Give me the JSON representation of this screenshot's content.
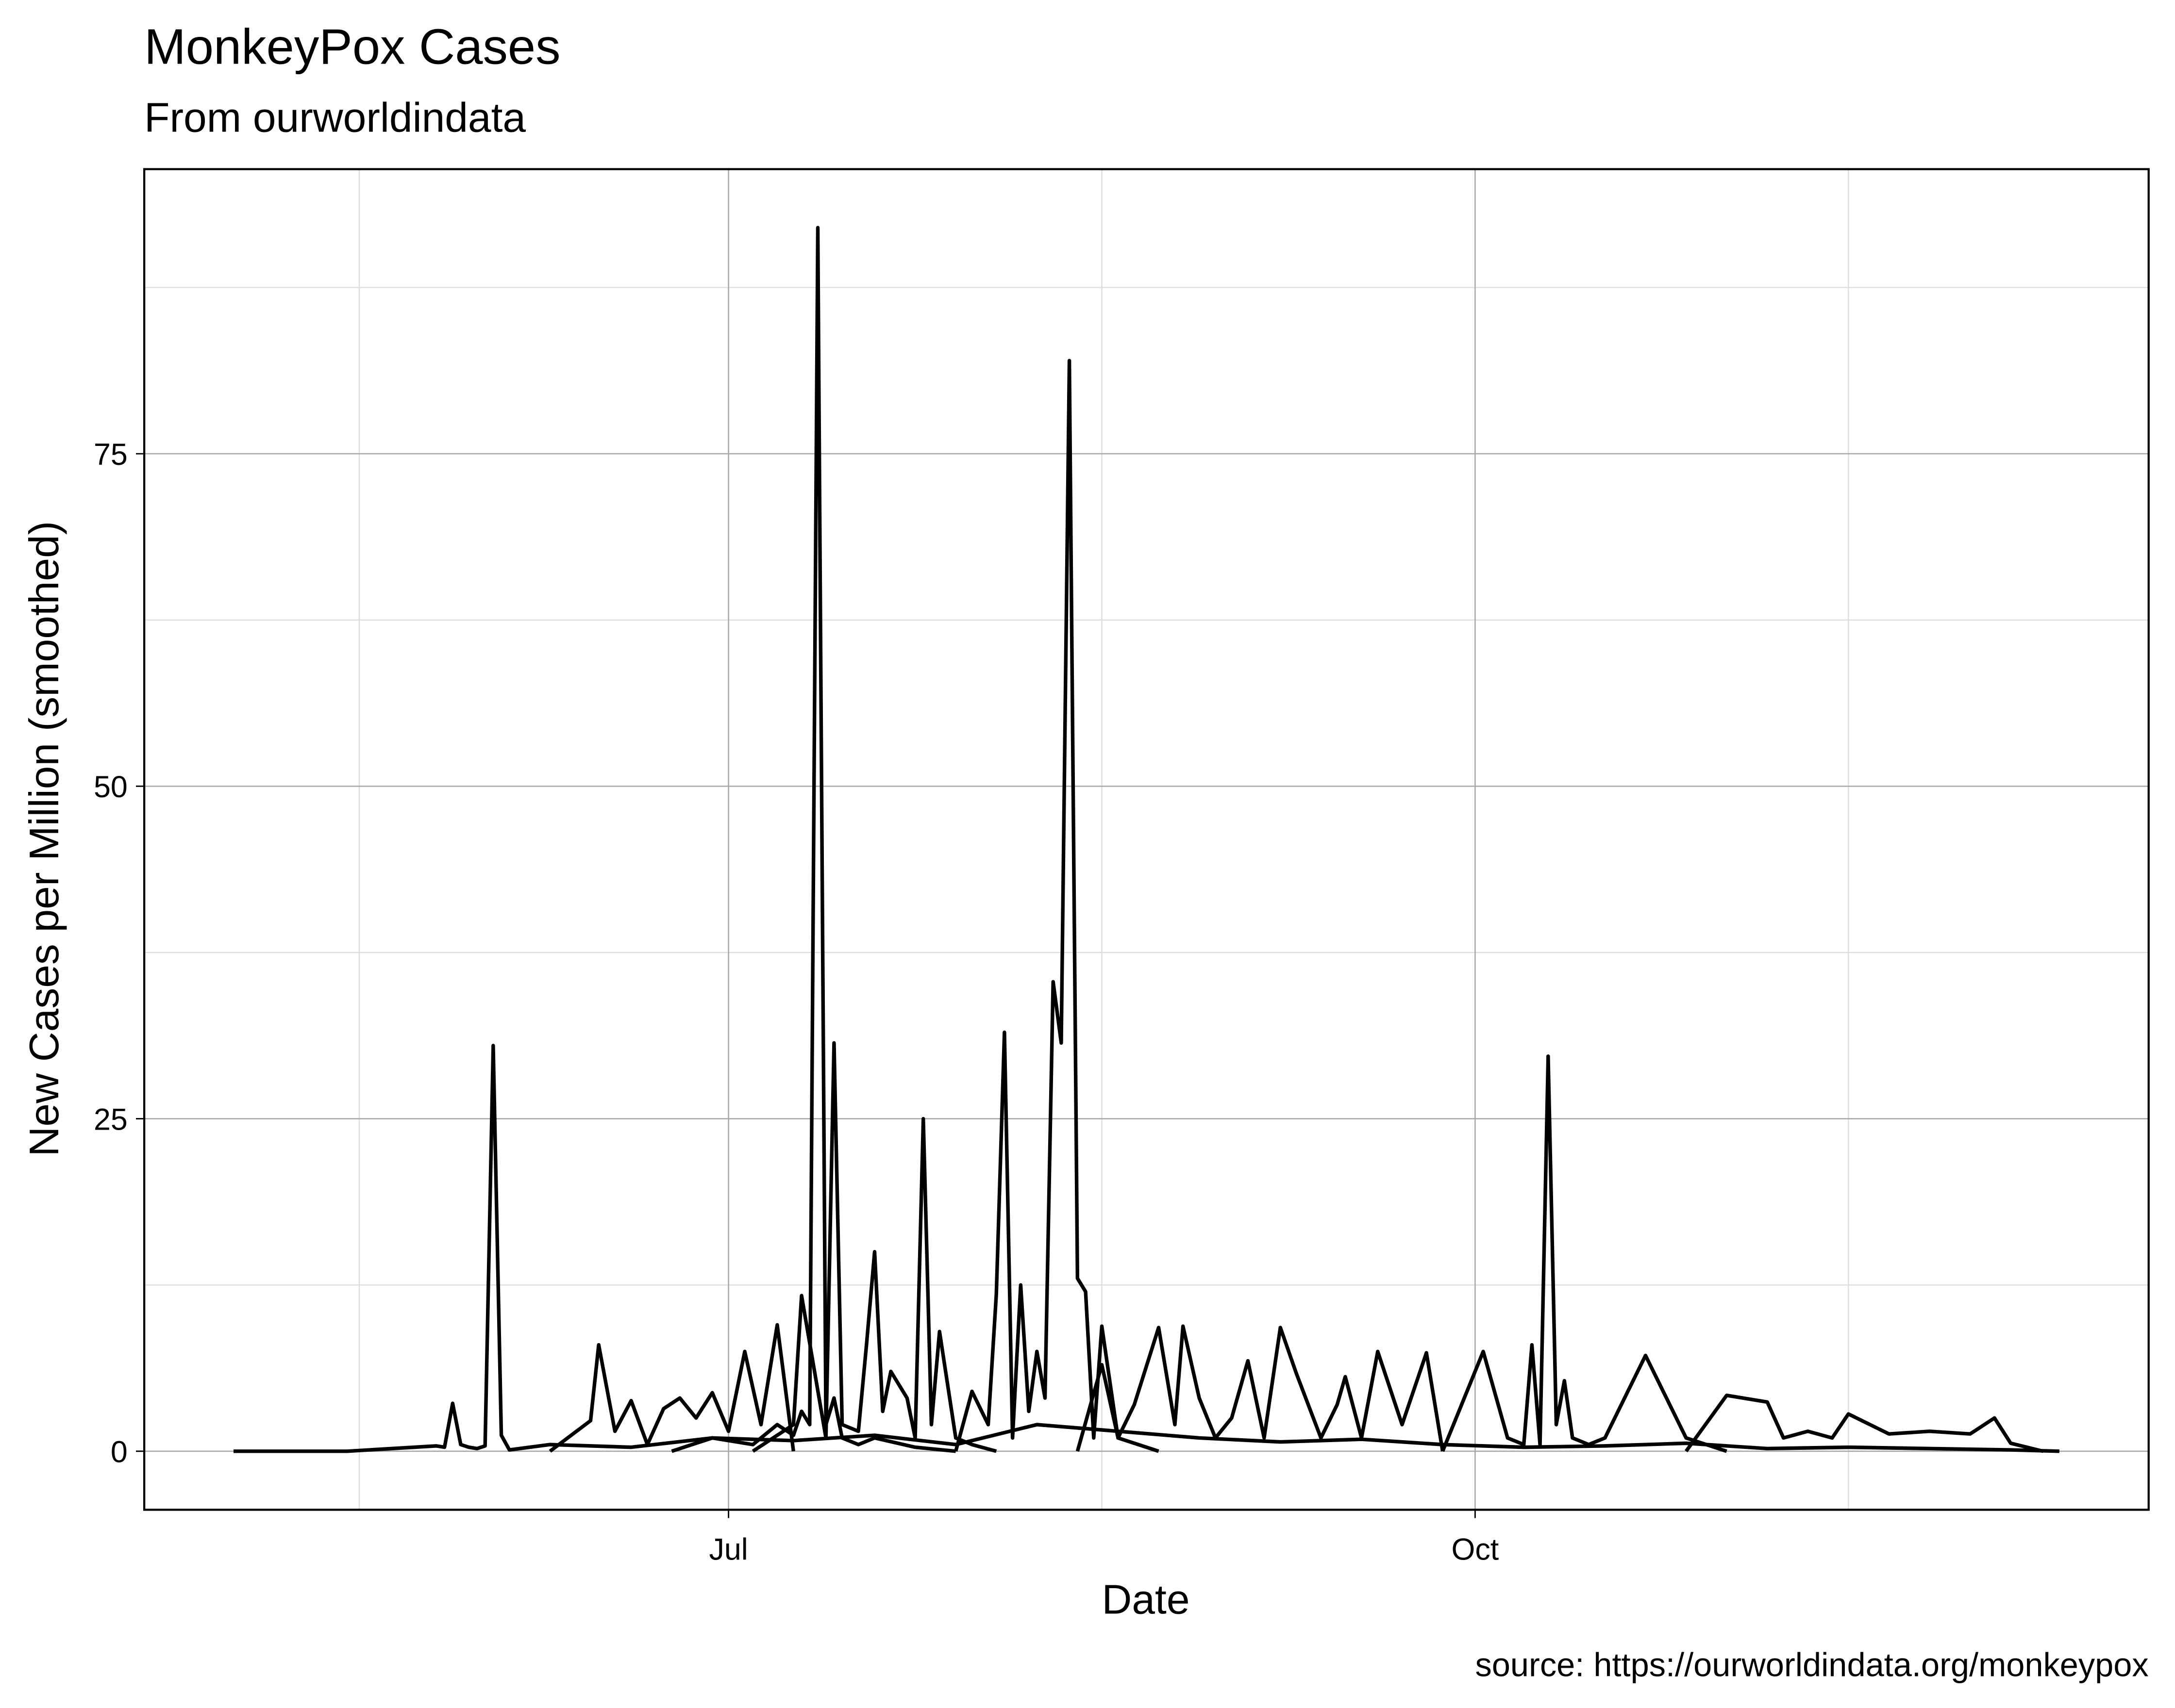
{
  "chart_data": {
    "type": "line",
    "title": "MonkeyPox Cases",
    "subtitle": "From ourworldindata",
    "x_label": "Date",
    "y_label": "New Cases per Million (smoothed)",
    "caption": "source: https://ourworldindata.org/monkeypox",
    "xlim": [
      110,
      357
    ],
    "ylim": [
      -4.4,
      96.4
    ],
    "xticks": [
      {
        "value": 182,
        "label": "Jul"
      },
      {
        "value": 274,
        "label": "Oct"
      }
    ],
    "yticks": [
      0,
      25,
      50,
      75
    ],
    "xminorticks": [
      136.5,
      228,
      320
    ],
    "yminorticks": [
      12.5,
      37.5,
      62.5,
      87.5
    ],
    "grid": true,
    "series": [
      {
        "color": "#000000",
        "x": [
          121,
          135,
          146,
          147,
          148,
          149,
          150,
          151,
          152,
          153,
          154,
          155,
          160,
          170,
          180,
          190,
          200,
          210,
          220,
          230,
          240,
          250,
          260,
          270,
          280,
          290,
          300,
          310,
          320,
          330,
          340,
          346
        ],
        "values": [
          0,
          0,
          0.4,
          0.3,
          3.6,
          0.5,
          0.3,
          0.2,
          0.4,
          30.5,
          1.2,
          0.1,
          0.5,
          0.3,
          1,
          0.8,
          1.2,
          0.5,
          2,
          1.5,
          1,
          0.7,
          0.9,
          0.5,
          0.3,
          0.4,
          0.6,
          0.2,
          0.3,
          0.2,
          0.1,
          0
        ]
      },
      {
        "color": "#000000",
        "x": [
          175,
          180,
          185,
          188,
          190,
          191,
          192,
          193,
          194,
          195,
          196,
          198,
          200,
          205,
          210
        ],
        "values": [
          0,
          1,
          0.5,
          2,
          1.2,
          3,
          2,
          92,
          2,
          4,
          1,
          0.5,
          1,
          0.3,
          0
        ]
      },
      {
        "color": "#000000",
        "x": [
          185,
          190,
          191,
          194,
          195,
          196,
          198,
          199,
          200,
          201,
          202,
          204,
          205,
          206,
          207,
          208,
          210,
          212,
          215
        ],
        "values": [
          0,
          2,
          11.7,
          1,
          30.7,
          2,
          1.5,
          8,
          15,
          3,
          6,
          4,
          1,
          25,
          2,
          9,
          1,
          0.5,
          0
        ]
      },
      {
        "color": "#000000",
        "x": [
          210,
          212,
          214,
          215,
          216,
          217,
          218,
          219,
          220,
          221,
          222,
          223,
          224,
          225,
          226,
          227,
          228,
          230,
          235
        ],
        "values": [
          0,
          4.5,
          2,
          11.8,
          31.5,
          1,
          12.5,
          3,
          7.5,
          4,
          35.3,
          30.7,
          82,
          13,
          12,
          1,
          9.4,
          1,
          0
        ]
      },
      {
        "color": "#000000",
        "x": [
          270,
          275,
          278,
          280,
          281,
          282,
          283,
          284,
          285,
          286,
          288,
          290,
          295,
          300,
          305
        ],
        "values": [
          0,
          7.5,
          1,
          0.5,
          8,
          0.5,
          29.7,
          2,
          5.3,
          1,
          0.5,
          1,
          7.2,
          1,
          0
        ]
      },
      {
        "color": "#000000",
        "x": [
          225,
          228,
          230,
          232,
          235,
          237,
          238,
          240,
          242,
          244,
          246,
          248,
          250,
          252,
          255,
          257,
          258,
          260,
          262,
          265,
          268,
          270
        ],
        "values": [
          0,
          6.5,
          1,
          3.5,
          9.3,
          2,
          9.4,
          4,
          1,
          2.5,
          6.8,
          1,
          9.3,
          5.8,
          1,
          3.5,
          5.6,
          1,
          7.5,
          2,
          7.4,
          0
        ]
      },
      {
        "color": "#000000",
        "x": [
          160,
          165,
          166,
          168,
          170,
          172,
          174,
          176,
          178,
          180,
          182,
          184,
          186,
          188,
          190
        ],
        "values": [
          0,
          2.3,
          8,
          1.5,
          3.8,
          0.5,
          3.2,
          4,
          2.5,
          4.4,
          1.5,
          7.5,
          2,
          9.5,
          0
        ]
      },
      {
        "color": "#000000",
        "x": [
          300,
          305,
          310,
          312,
          315,
          318,
          320,
          325,
          330,
          335,
          338,
          340,
          344
        ],
        "values": [
          0,
          4.2,
          3.7,
          1,
          1.5,
          1,
          2.8,
          1.3,
          1.5,
          1.3,
          2.5,
          0.6,
          0
        ]
      }
    ]
  }
}
